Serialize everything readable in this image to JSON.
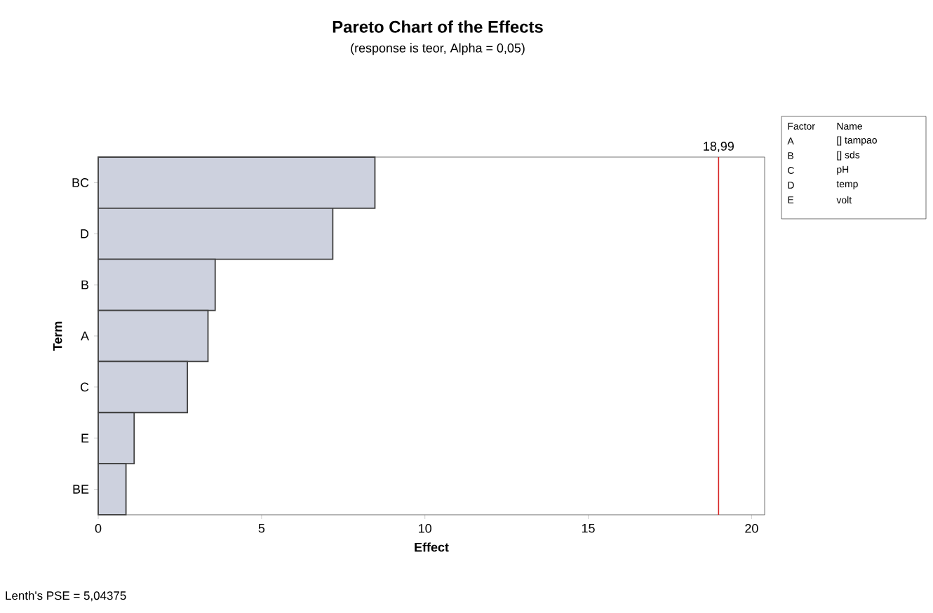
{
  "chart_data": {
    "type": "bar",
    "orientation": "horizontal",
    "title": "Pareto Chart of the Effects",
    "subtitle": "(response is teor, Alpha = 0,05)",
    "xlabel": "Effect",
    "ylabel": "Term",
    "categories": [
      "BC",
      "D",
      "B",
      "A",
      "C",
      "E",
      "BE"
    ],
    "values": [
      8.47,
      7.18,
      3.58,
      3.36,
      2.73,
      1.1,
      0.85
    ],
    "color": "#cdd1de",
    "xlim": [
      0,
      20.4
    ],
    "xticks": [
      0,
      5,
      10,
      15,
      20
    ],
    "ref_lines": [
      {
        "axis": "x",
        "value": 18.99,
        "label": "18,99",
        "color": "#d62020"
      }
    ],
    "annotations": [
      "Lenth's PSE = 5,04375",
      "Factor",
      "Name",
      "A",
      "[] tampao",
      "B",
      "[] sds",
      "C",
      "pH",
      "D",
      "temp",
      "E",
      "volt"
    ]
  }
}
